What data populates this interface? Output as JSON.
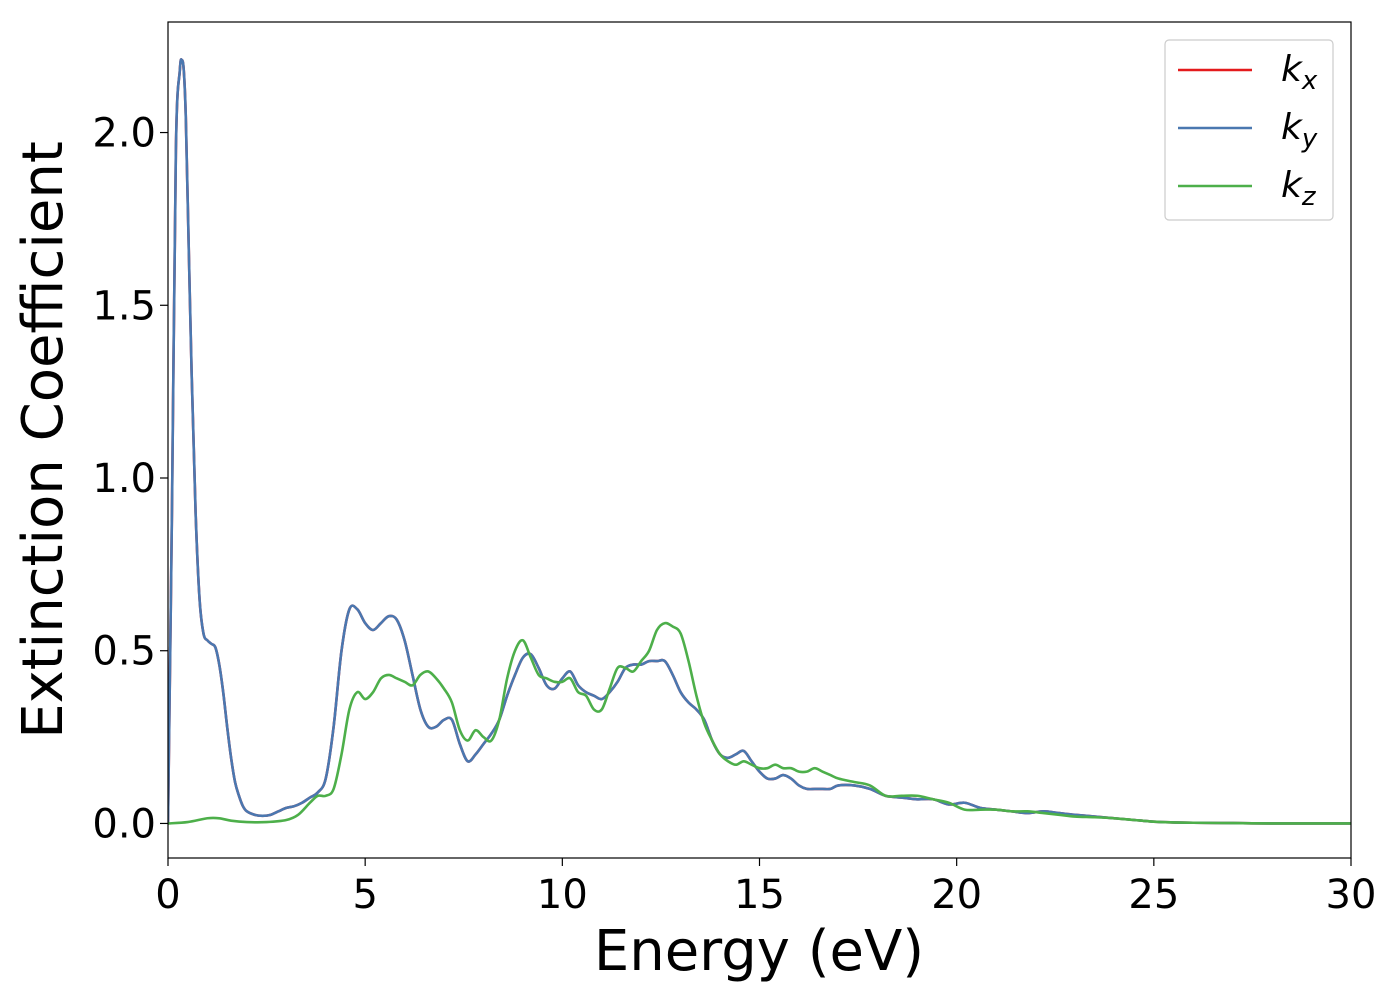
{
  "chart_data": {
    "type": "line",
    "title": "",
    "xlabel": "Energy (eV)",
    "ylabel": "Extinction Coefficient",
    "xlim": [
      0,
      30
    ],
    "ylim": [
      -0.1,
      2.32
    ],
    "xticks": [
      0,
      5,
      10,
      15,
      20,
      25,
      30
    ],
    "xtick_labels": [
      "0",
      "5",
      "10",
      "15",
      "20",
      "25",
      "30"
    ],
    "yticks": [
      0.0,
      0.5,
      1.0,
      1.5,
      2.0
    ],
    "ytick_labels": [
      "0.0",
      "0.5",
      "1.0",
      "1.5",
      "2.0"
    ],
    "grid": false,
    "legend_position": "top-right",
    "series": [
      {
        "name": "k",
        "subscript": "x",
        "color": "#e41a1c",
        "x": [
          0,
          0.1,
          0.2,
          0.3,
          0.35,
          0.4,
          0.45,
          0.5,
          0.6,
          0.7,
          0.8,
          0.9,
          1.0,
          1.1,
          1.2,
          1.3,
          1.4,
          1.5,
          1.6,
          1.7,
          1.8,
          1.9,
          2.0,
          2.2,
          2.4,
          2.6,
          2.8,
          3.0,
          3.2,
          3.4,
          3.6,
          3.8,
          4.0,
          4.2,
          4.4,
          4.6,
          4.8,
          5.0,
          5.2,
          5.4,
          5.6,
          5.8,
          6.0,
          6.2,
          6.4,
          6.6,
          6.8,
          7.0,
          7.2,
          7.4,
          7.6,
          7.8,
          8.0,
          8.2,
          8.4,
          8.6,
          8.8,
          9.0,
          9.2,
          9.4,
          9.6,
          9.8,
          10.0,
          10.2,
          10.4,
          10.6,
          10.8,
          11.0,
          11.2,
          11.4,
          11.6,
          11.8,
          12.0,
          12.2,
          12.4,
          12.6,
          12.8,
          13.0,
          13.2,
          13.4,
          13.6,
          13.8,
          14.0,
          14.2,
          14.4,
          14.6,
          14.8,
          15.0,
          15.2,
          15.4,
          15.6,
          15.8,
          16.0,
          16.2,
          16.4,
          16.6,
          16.8,
          17.0,
          17.4,
          17.8,
          18.2,
          18.6,
          19.0,
          19.4,
          19.8,
          20.2,
          20.6,
          21.0,
          21.4,
          21.8,
          22.2,
          22.6,
          23.0,
          23.5,
          24.0,
          24.5,
          25.0,
          25.5,
          26.0,
          27.0,
          28.0,
          29.0,
          30.0
        ],
        "values": [
          0.0,
          0.9,
          1.95,
          2.18,
          2.21,
          2.18,
          2.05,
          1.8,
          1.3,
          0.9,
          0.65,
          0.55,
          0.53,
          0.52,
          0.51,
          0.46,
          0.38,
          0.28,
          0.19,
          0.12,
          0.08,
          0.05,
          0.035,
          0.025,
          0.022,
          0.025,
          0.035,
          0.045,
          0.05,
          0.06,
          0.075,
          0.09,
          0.13,
          0.28,
          0.5,
          0.62,
          0.62,
          0.58,
          0.56,
          0.58,
          0.6,
          0.59,
          0.53,
          0.43,
          0.33,
          0.28,
          0.28,
          0.3,
          0.3,
          0.23,
          0.18,
          0.2,
          0.23,
          0.26,
          0.3,
          0.37,
          0.43,
          0.48,
          0.49,
          0.45,
          0.4,
          0.39,
          0.42,
          0.44,
          0.4,
          0.38,
          0.37,
          0.36,
          0.38,
          0.41,
          0.45,
          0.46,
          0.46,
          0.47,
          0.47,
          0.47,
          0.43,
          0.38,
          0.35,
          0.33,
          0.3,
          0.24,
          0.2,
          0.19,
          0.2,
          0.21,
          0.18,
          0.15,
          0.13,
          0.13,
          0.14,
          0.13,
          0.11,
          0.1,
          0.1,
          0.1,
          0.1,
          0.11,
          0.11,
          0.1,
          0.08,
          0.075,
          0.07,
          0.07,
          0.055,
          0.06,
          0.045,
          0.04,
          0.035,
          0.03,
          0.035,
          0.03,
          0.025,
          0.02,
          0.015,
          0.01,
          0.005,
          0.003,
          0.002,
          0.001,
          0.0,
          0.0,
          0.0
        ]
      },
      {
        "name": "k",
        "subscript": "y",
        "color": "#4a78b0",
        "x": [
          0,
          0.1,
          0.2,
          0.3,
          0.35,
          0.4,
          0.45,
          0.5,
          0.6,
          0.7,
          0.8,
          0.9,
          1.0,
          1.1,
          1.2,
          1.3,
          1.4,
          1.5,
          1.6,
          1.7,
          1.8,
          1.9,
          2.0,
          2.2,
          2.4,
          2.6,
          2.8,
          3.0,
          3.2,
          3.4,
          3.6,
          3.8,
          4.0,
          4.2,
          4.4,
          4.6,
          4.8,
          5.0,
          5.2,
          5.4,
          5.6,
          5.8,
          6.0,
          6.2,
          6.4,
          6.6,
          6.8,
          7.0,
          7.2,
          7.4,
          7.6,
          7.8,
          8.0,
          8.2,
          8.4,
          8.6,
          8.8,
          9.0,
          9.2,
          9.4,
          9.6,
          9.8,
          10.0,
          10.2,
          10.4,
          10.6,
          10.8,
          11.0,
          11.2,
          11.4,
          11.6,
          11.8,
          12.0,
          12.2,
          12.4,
          12.6,
          12.8,
          13.0,
          13.2,
          13.4,
          13.6,
          13.8,
          14.0,
          14.2,
          14.4,
          14.6,
          14.8,
          15.0,
          15.2,
          15.4,
          15.6,
          15.8,
          16.0,
          16.2,
          16.4,
          16.6,
          16.8,
          17.0,
          17.4,
          17.8,
          18.2,
          18.6,
          19.0,
          19.4,
          19.8,
          20.2,
          20.6,
          21.0,
          21.4,
          21.8,
          22.2,
          22.6,
          23.0,
          23.5,
          24.0,
          24.5,
          25.0,
          25.5,
          26.0,
          27.0,
          28.0,
          29.0,
          30.0
        ],
        "values": [
          0.0,
          0.9,
          1.95,
          2.18,
          2.21,
          2.18,
          2.05,
          1.8,
          1.3,
          0.9,
          0.65,
          0.55,
          0.53,
          0.52,
          0.51,
          0.46,
          0.38,
          0.28,
          0.19,
          0.12,
          0.08,
          0.05,
          0.035,
          0.025,
          0.022,
          0.025,
          0.035,
          0.045,
          0.05,
          0.06,
          0.075,
          0.09,
          0.13,
          0.28,
          0.5,
          0.62,
          0.62,
          0.58,
          0.56,
          0.58,
          0.6,
          0.59,
          0.53,
          0.43,
          0.33,
          0.28,
          0.28,
          0.3,
          0.3,
          0.23,
          0.18,
          0.2,
          0.23,
          0.26,
          0.3,
          0.37,
          0.43,
          0.48,
          0.49,
          0.45,
          0.4,
          0.39,
          0.42,
          0.44,
          0.4,
          0.38,
          0.37,
          0.36,
          0.38,
          0.41,
          0.45,
          0.46,
          0.46,
          0.47,
          0.47,
          0.47,
          0.43,
          0.38,
          0.35,
          0.33,
          0.3,
          0.24,
          0.2,
          0.19,
          0.2,
          0.21,
          0.18,
          0.15,
          0.13,
          0.13,
          0.14,
          0.13,
          0.11,
          0.1,
          0.1,
          0.1,
          0.1,
          0.11,
          0.11,
          0.1,
          0.08,
          0.075,
          0.07,
          0.07,
          0.055,
          0.06,
          0.045,
          0.04,
          0.035,
          0.03,
          0.035,
          0.03,
          0.025,
          0.02,
          0.015,
          0.01,
          0.005,
          0.003,
          0.002,
          0.001,
          0.0,
          0.0,
          0.0
        ]
      },
      {
        "name": "k",
        "subscript": "z",
        "color": "#4daf4a",
        "x": [
          0,
          0.5,
          1.0,
          1.3,
          1.6,
          2.0,
          2.5,
          3.0,
          3.3,
          3.6,
          3.8,
          4.0,
          4.2,
          4.4,
          4.6,
          4.8,
          5.0,
          5.2,
          5.4,
          5.6,
          5.8,
          6.0,
          6.2,
          6.4,
          6.6,
          6.8,
          7.0,
          7.2,
          7.4,
          7.6,
          7.8,
          8.0,
          8.2,
          8.4,
          8.6,
          8.8,
          9.0,
          9.2,
          9.4,
          9.6,
          9.8,
          10.0,
          10.2,
          10.4,
          10.6,
          10.8,
          11.0,
          11.2,
          11.4,
          11.6,
          11.8,
          12.0,
          12.2,
          12.4,
          12.6,
          12.8,
          13.0,
          13.2,
          13.4,
          13.6,
          13.8,
          14.0,
          14.2,
          14.4,
          14.6,
          14.8,
          15.0,
          15.2,
          15.4,
          15.6,
          15.8,
          16.0,
          16.2,
          16.4,
          16.6,
          16.8,
          17.0,
          17.4,
          17.8,
          18.2,
          18.6,
          19.0,
          19.4,
          19.8,
          20.2,
          20.6,
          21.0,
          21.4,
          21.8,
          22.2,
          22.6,
          23.0,
          23.5,
          24.0,
          24.5,
          25.0,
          25.5,
          26.0,
          27.0,
          28.0,
          29.0,
          30.0
        ],
        "values": [
          0.0,
          0.004,
          0.015,
          0.015,
          0.008,
          0.004,
          0.004,
          0.01,
          0.025,
          0.06,
          0.08,
          0.08,
          0.1,
          0.2,
          0.33,
          0.38,
          0.36,
          0.38,
          0.42,
          0.43,
          0.42,
          0.41,
          0.4,
          0.43,
          0.44,
          0.42,
          0.39,
          0.35,
          0.27,
          0.24,
          0.27,
          0.25,
          0.24,
          0.3,
          0.42,
          0.5,
          0.53,
          0.48,
          0.43,
          0.42,
          0.41,
          0.41,
          0.42,
          0.38,
          0.37,
          0.33,
          0.33,
          0.39,
          0.45,
          0.45,
          0.44,
          0.47,
          0.5,
          0.56,
          0.58,
          0.57,
          0.55,
          0.47,
          0.37,
          0.29,
          0.24,
          0.2,
          0.18,
          0.17,
          0.18,
          0.17,
          0.16,
          0.16,
          0.17,
          0.16,
          0.16,
          0.15,
          0.15,
          0.16,
          0.15,
          0.14,
          0.13,
          0.12,
          0.11,
          0.08,
          0.08,
          0.08,
          0.07,
          0.06,
          0.04,
          0.04,
          0.04,
          0.035,
          0.035,
          0.03,
          0.025,
          0.02,
          0.018,
          0.015,
          0.01,
          0.005,
          0.003,
          0.002,
          0.001,
          0.0,
          0.0,
          0.0
        ]
      }
    ]
  }
}
